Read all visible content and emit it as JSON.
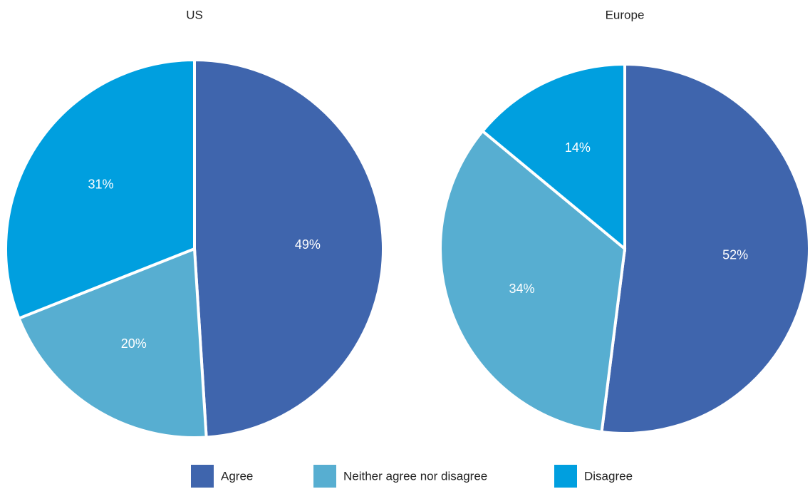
{
  "chart_data": [
    {
      "type": "pie",
      "title": "US",
      "values": [
        49,
        20,
        31
      ],
      "value_labels": [
        "49%",
        "20%",
        "31%"
      ]
    },
    {
      "type": "pie",
      "title": "Europe",
      "values": [
        52,
        34,
        14
      ],
      "value_labels": [
        "52%",
        "34%",
        "14%"
      ]
    }
  ],
  "legend": {
    "labels": [
      "Agree",
      "Neither agree nor disagree",
      "Disagree"
    ],
    "colors": [
      "#3f65ad",
      "#57aed1",
      "#009fdf"
    ]
  }
}
